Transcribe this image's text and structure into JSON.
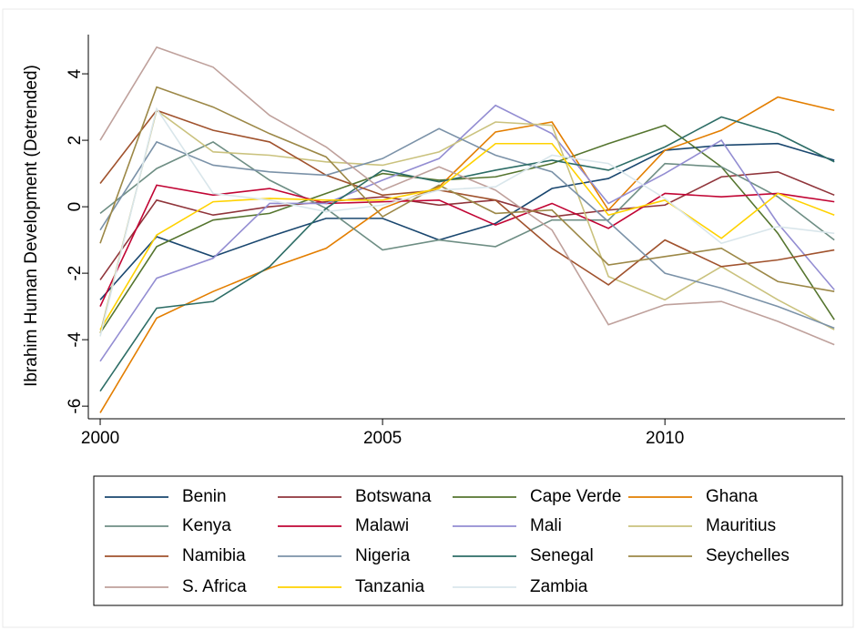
{
  "chart_data": {
    "type": "line",
    "y_label": "Ibrahim Human Development (Detrended)",
    "x": [
      2000,
      2001,
      2002,
      2003,
      2004,
      2005,
      2006,
      2007,
      2008,
      2009,
      2010,
      2011,
      2012,
      2013
    ],
    "xlim": [
      1999.79,
      2013.19
    ],
    "xticks": [
      2000,
      2005,
      2010
    ],
    "ylim": [
      -6.38,
      5.18
    ],
    "yticks": [
      -6,
      -4,
      -2,
      0,
      2,
      4
    ],
    "grid": false,
    "legend": "bottom",
    "series": [
      {
        "name": "Benin",
        "color": "#1a476f",
        "values": [
          -2.8,
          -0.9,
          -1.5,
          -0.9,
          -0.35,
          -0.35,
          -1.0,
          -0.5,
          0.55,
          0.85,
          1.7,
          1.85,
          1.9,
          1.4
        ]
      },
      {
        "name": "Botswana",
        "color": "#90353b",
        "values": [
          -2.2,
          0.2,
          -0.25,
          0.0,
          0.15,
          0.3,
          0.05,
          0.2,
          -0.3,
          -0.1,
          0.05,
          0.9,
          1.05,
          0.35
        ]
      },
      {
        "name": "Cape Verde",
        "color": "#55752f",
        "values": [
          -3.8,
          -1.2,
          -0.4,
          -0.2,
          0.4,
          1.0,
          0.8,
          0.9,
          1.3,
          1.9,
          2.45,
          1.2,
          -0.8,
          -3.4
        ]
      },
      {
        "name": "Ghana",
        "color": "#e37e00",
        "values": [
          -6.2,
          -3.35,
          -2.55,
          -1.85,
          -1.25,
          -0.05,
          0.6,
          2.25,
          2.55,
          -0.1,
          1.7,
          2.3,
          3.3,
          2.9
        ]
      },
      {
        "name": "Kenya",
        "color": "#6e8e84",
        "values": [
          -0.2,
          1.15,
          1.95,
          0.8,
          -0.05,
          -1.3,
          -1.0,
          -1.2,
          -0.4,
          -0.4,
          1.3,
          1.2,
          0.3,
          -1.0
        ]
      },
      {
        "name": "Malawi",
        "color": "#c10534",
        "values": [
          -3.0,
          0.65,
          0.35,
          0.55,
          0.1,
          0.15,
          0.2,
          -0.55,
          0.1,
          -0.65,
          0.4,
          0.3,
          0.4,
          0.15
        ]
      },
      {
        "name": "Mali",
        "color": "#938dd2",
        "values": [
          -4.65,
          -2.15,
          -1.55,
          0.1,
          0.1,
          0.8,
          1.45,
          3.05,
          2.2,
          0.1,
          1.0,
          2.0,
          -0.5,
          -2.5
        ]
      },
      {
        "name": "Mauritius",
        "color": "#cac27e",
        "values": [
          -3.8,
          2.9,
          1.65,
          1.55,
          1.35,
          1.25,
          1.65,
          2.55,
          2.45,
          -2.1,
          -2.8,
          -1.8,
          -2.8,
          -3.7
        ]
      },
      {
        "name": "Namibia",
        "color": "#a0522d",
        "values": [
          0.7,
          2.9,
          2.3,
          1.95,
          0.95,
          0.35,
          0.5,
          0.2,
          -1.25,
          -2.35,
          -1.0,
          -1.8,
          -1.6,
          -1.3
        ]
      },
      {
        "name": "Nigeria",
        "color": "#7b92a8",
        "values": [
          -0.7,
          1.95,
          1.25,
          1.05,
          0.95,
          1.45,
          2.35,
          1.55,
          1.05,
          -0.45,
          -2.0,
          -2.45,
          -3.0,
          -3.65
        ]
      },
      {
        "name": "Senegal",
        "color": "#2d6d66",
        "values": [
          -5.55,
          -3.05,
          -2.85,
          -1.8,
          -0.05,
          1.1,
          0.75,
          1.1,
          1.4,
          1.1,
          1.8,
          2.7,
          2.2,
          1.35
        ]
      },
      {
        "name": "Seychelles",
        "color": "#9c8847",
        "values": [
          -1.1,
          3.6,
          3.0,
          2.2,
          1.5,
          -0.3,
          0.65,
          -0.2,
          -0.1,
          -1.75,
          -1.5,
          -1.25,
          -2.25,
          -2.55
        ]
      },
      {
        "name": "S. Africa",
        "color": "#bfa19c",
        "values": [
          2.0,
          4.8,
          4.2,
          2.75,
          1.8,
          0.5,
          1.2,
          0.5,
          -0.7,
          -3.55,
          -2.95,
          -2.85,
          -3.45,
          -4.15
        ]
      },
      {
        "name": "Tanzania",
        "color": "#ffd200",
        "values": [
          -3.7,
          -0.85,
          0.15,
          0.25,
          0.2,
          0.2,
          0.55,
          1.9,
          1.9,
          -0.25,
          0.2,
          -0.95,
          0.4,
          -0.25
        ]
      },
      {
        "name": "Zambia",
        "color": "#d9e6eb",
        "values": [
          -3.9,
          2.95,
          0.4,
          0.2,
          -0.15,
          0.05,
          0.5,
          0.6,
          1.55,
          1.3,
          0.25,
          -1.1,
          -0.6,
          -0.8
        ]
      }
    ]
  }
}
